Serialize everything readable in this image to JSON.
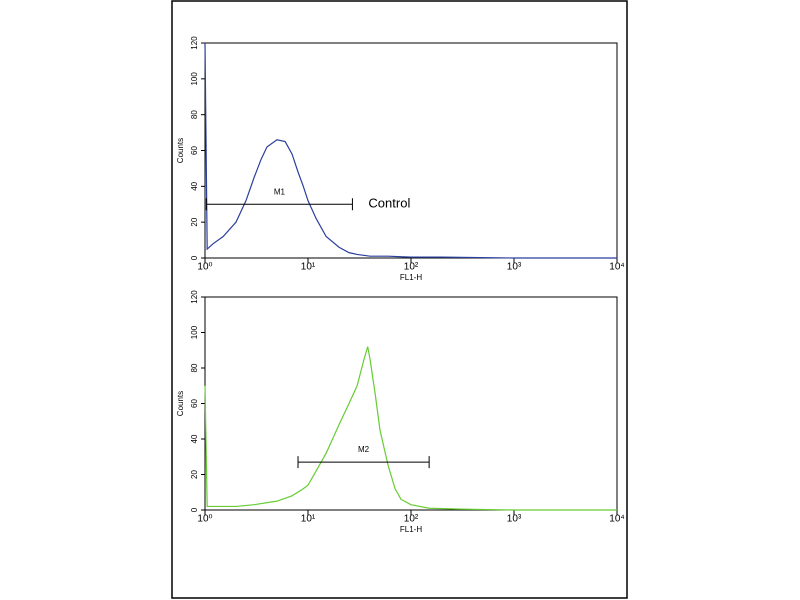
{
  "chart_data": [
    {
      "type": "line",
      "x_label": "FL1-H",
      "y_label": "Counts",
      "log_x": true,
      "xlim": [
        1,
        10000
      ],
      "ylim": [
        0,
        120
      ],
      "xticks": [
        {
          "value": 1,
          "label": "10⁰"
        },
        {
          "value": 10,
          "label": "10¹"
        },
        {
          "value": 100,
          "label": "10²"
        },
        {
          "value": 1000,
          "label": "10³"
        },
        {
          "value": 10000,
          "label": "10⁴"
        }
      ],
      "yticks": [
        0,
        20,
        40,
        60,
        80,
        100,
        120
      ],
      "x": [
        1,
        1.05,
        1.2,
        1.5,
        2,
        2.5,
        3,
        3.5,
        4,
        5,
        6,
        7,
        8,
        9,
        10,
        12,
        15,
        20,
        25,
        30,
        40,
        60,
        100,
        200,
        1000,
        10000
      ],
      "series": [
        {
          "color": "#2b3f9e",
          "values": [
            120,
            5,
            8,
            12,
            20,
            32,
            45,
            55,
            62,
            66,
            65,
            58,
            48,
            40,
            32,
            22,
            12,
            6,
            3,
            2,
            1,
            1,
            0.5,
            0.5,
            0,
            0
          ]
        }
      ],
      "markers": [
        {
          "label": "M1",
          "range": [
            1.03,
            27
          ],
          "y": 30
        }
      ],
      "annotation": "Control"
    },
    {
      "type": "line",
      "x_label": "FL1-H",
      "y_label": "Counts",
      "log_x": true,
      "xlim": [
        1,
        10000
      ],
      "ylim": [
        0,
        120
      ],
      "xticks": [
        {
          "value": 1,
          "label": "10⁰"
        },
        {
          "value": 10,
          "label": "10¹"
        },
        {
          "value": 100,
          "label": "10²"
        },
        {
          "value": 1000,
          "label": "10³"
        },
        {
          "value": 10000,
          "label": "10⁴"
        }
      ],
      "yticks": [
        0,
        20,
        40,
        60,
        80,
        100,
        120
      ],
      "x": [
        1,
        1.05,
        2,
        3,
        5,
        7,
        9,
        10,
        12,
        15,
        20,
        25,
        30,
        35,
        38,
        40,
        45,
        50,
        60,
        70,
        80,
        100,
        150,
        300,
        1000,
        10000
      ],
      "series": [
        {
          "color": "#66cc33",
          "values": [
            70,
            2,
            2,
            3,
            5,
            8,
            12,
            14,
            22,
            32,
            48,
            60,
            70,
            85,
            92,
            85,
            65,
            45,
            25,
            12,
            6,
            3,
            1,
            0.5,
            0,
            0
          ]
        }
      ],
      "markers": [
        {
          "label": "M2",
          "range": [
            8,
            150
          ],
          "y": 27
        }
      ]
    }
  ]
}
